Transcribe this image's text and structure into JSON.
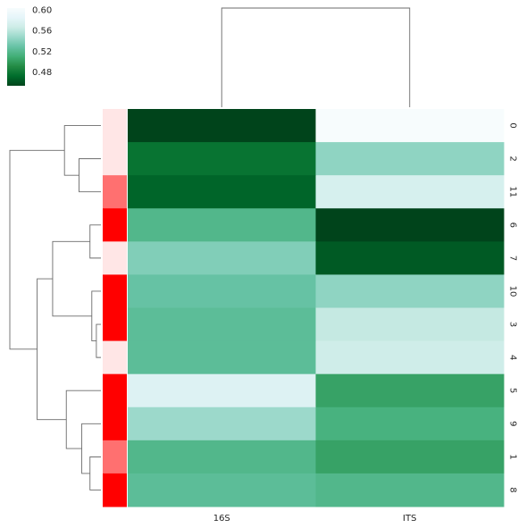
{
  "chart_data": {
    "type": "heatmap",
    "title": "",
    "xlabel": "",
    "ylabel": "",
    "columns": [
      "16S",
      "ITS"
    ],
    "rows": [
      "0",
      "2",
      "11",
      "6",
      "7",
      "10",
      "3",
      "4",
      "5",
      "9",
      "1",
      "8"
    ],
    "values": [
      [
        0.455,
        0.605
      ],
      [
        0.478,
        0.545
      ],
      [
        0.47,
        0.575
      ],
      [
        0.52,
        0.45
      ],
      [
        0.54,
        0.465
      ],
      [
        0.53,
        0.545
      ],
      [
        0.525,
        0.565
      ],
      [
        0.525,
        0.57
      ],
      [
        0.58,
        0.505
      ],
      [
        0.55,
        0.515
      ],
      [
        0.52,
        0.505
      ],
      [
        0.525,
        0.52
      ]
    ],
    "row_colors": [
      "#ffe6e6",
      "#ffe6e6",
      "#ff7070",
      "#ff0000",
      "#ffe6e6",
      "#ff0000",
      "#ff0000",
      "#ffe6e6",
      "#ff0000",
      "#ff0000",
      "#ff7070",
      "#ff0000"
    ],
    "colormap": [
      "#00441b",
      "#006d2c",
      "#238b45",
      "#41ae76",
      "#66c2a4",
      "#99d8c9",
      "#ccece6",
      "#e5f5f9",
      "#f7fcfd"
    ],
    "colorbar": {
      "vmin": 0.455,
      "vmax": 0.605,
      "ticks": [
        0.48,
        0.52,
        0.56,
        0.6
      ],
      "tick_labels": [
        "0.48",
        "0.52",
        "0.56",
        "0.60"
      ]
    },
    "col_dendrogram": [
      {
        "left": 0,
        "right": 1,
        "height": 1.0
      }
    ],
    "row_dendrogram": [
      {
        "left": 1,
        "right": 2,
        "height": 0.24
      },
      {
        "left": 0,
        "right": "n0",
        "height": 0.4
      },
      {
        "left": 3,
        "right": 4,
        "height": 0.12
      },
      {
        "left": 6,
        "right": 7,
        "height": 0.05
      },
      {
        "left": 5,
        "right": "n3",
        "height": 0.1
      },
      {
        "left": "n2",
        "right": "n4",
        "height": 0.53
      },
      {
        "left": 10,
        "right": 11,
        "height": 0.12
      },
      {
        "left": 9,
        "right": "n6",
        "height": 0.21
      },
      {
        "left": 8,
        "right": "n7",
        "height": 0.38
      },
      {
        "left": "n5",
        "right": "n8",
        "height": 0.7
      },
      {
        "left": "n1",
        "right": "n9",
        "height": 1.0
      }
    ]
  }
}
